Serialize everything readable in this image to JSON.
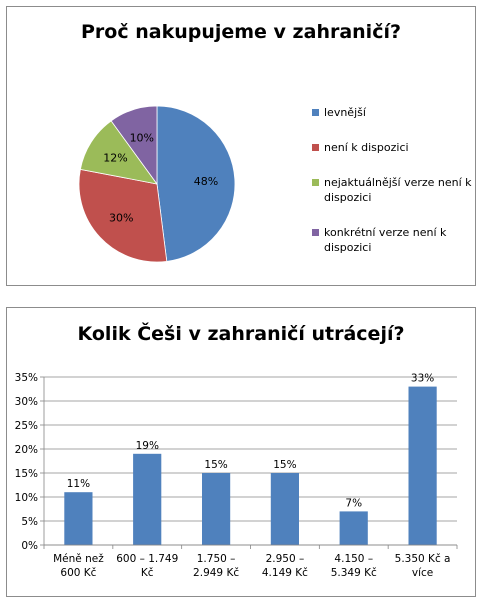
{
  "charts": [
    {
      "chart_data": {
        "type": "pie",
        "title": "Proč nakupujeme v zahraničí?",
        "labels": [
          "levnější",
          "není k dispozici",
          "nejaktuálnější verze není k dispozici",
          "konkrétní verze není k dispozici"
        ],
        "legend_lines": [
          [
            "levnější"
          ],
          [
            "není k dispozici"
          ],
          [
            "nejaktuálnější verze není k",
            "dispozici"
          ],
          [
            "konkrétní verze není k",
            "dispozici"
          ]
        ],
        "values": [
          48,
          30,
          12,
          10
        ],
        "data_labels": [
          "48%",
          "30%",
          "12%",
          "10%"
        ],
        "colors": [
          "#4f81bd",
          "#c0504d",
          "#9bbb59",
          "#8064a2"
        ],
        "legend_position": "right"
      }
    },
    {
      "chart_data": {
        "type": "bar",
        "title": "Kolik Češi v zahraničí utrácejí?",
        "categories": [
          [
            "Méně než",
            "600 Kč"
          ],
          [
            "600 – 1.749",
            "Kč"
          ],
          [
            "1.750 –",
            "2.949 Kč"
          ],
          [
            "2.950 –",
            "4.149 Kč"
          ],
          [
            "4.150 –",
            "5.349 Kč"
          ],
          [
            "5.350 Kč a",
            "více"
          ]
        ],
        "values": [
          11,
          19,
          15,
          15,
          7,
          33
        ],
        "data_labels": [
          "11%",
          "19%",
          "15%",
          "15%",
          "7%",
          "33%"
        ],
        "ylim": [
          0,
          35
        ],
        "y_ticks": [
          "0%",
          "5%",
          "10%",
          "15%",
          "20%",
          "25%",
          "30%",
          "35%"
        ],
        "grid": true,
        "color": "#4f81bd"
      }
    }
  ]
}
